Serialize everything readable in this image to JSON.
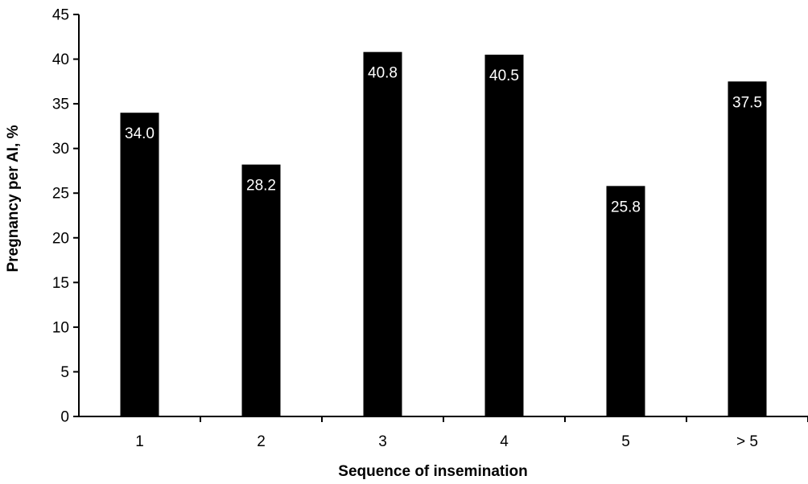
{
  "chart_data": {
    "type": "bar",
    "categories": [
      "1",
      "2",
      "3",
      "4",
      "5",
      "> 5"
    ],
    "values": [
      34.0,
      28.2,
      40.8,
      40.5,
      25.8,
      37.5
    ],
    "data_labels": [
      "34.0",
      "28.2",
      "40.8",
      "40.5",
      "25.8",
      "37.5"
    ],
    "xlabel": "Sequence of insemination",
    "ylabel": "Pregnancy per AI, %",
    "ylim": [
      0,
      45
    ],
    "yticks": [
      "0",
      "5",
      "10",
      "15",
      "20",
      "25",
      "30",
      "35",
      "40",
      "45"
    ],
    "grid": false,
    "legend": "none",
    "bar_color": "#000000",
    "label_color": "#ffffff"
  }
}
